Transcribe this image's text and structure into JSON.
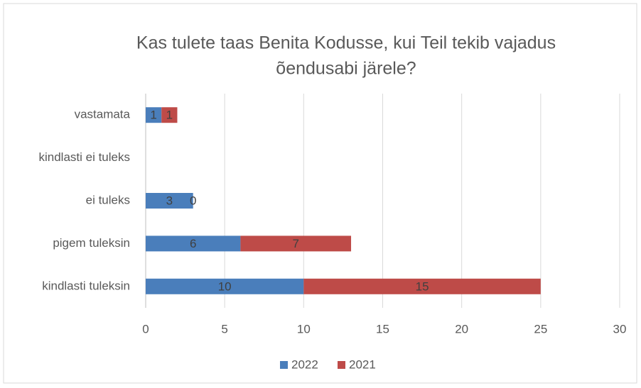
{
  "chart_data": {
    "type": "bar",
    "orientation": "horizontal",
    "stacked": true,
    "title": [
      "Kas tulete taas Benita Kodusse, kui Teil tekib vajadus",
      "õendusabi järele?"
    ],
    "categories": [
      "vastamata",
      "kindlasti ei tuleks",
      "ei tuleks",
      "pigem tuleksin",
      "kindlasti tuleksin"
    ],
    "series": [
      {
        "name": "2022",
        "color": "#4a7ebb",
        "values": [
          1,
          null,
          3,
          6,
          10
        ]
      },
      {
        "name": "2021",
        "color": "#be4b48",
        "values": [
          1,
          null,
          0,
          7,
          15
        ]
      }
    ],
    "xlim": [
      0,
      30
    ],
    "xticks": [
      0,
      5,
      10,
      15,
      20,
      25,
      30
    ],
    "grid": true,
    "legend": "bottom"
  }
}
